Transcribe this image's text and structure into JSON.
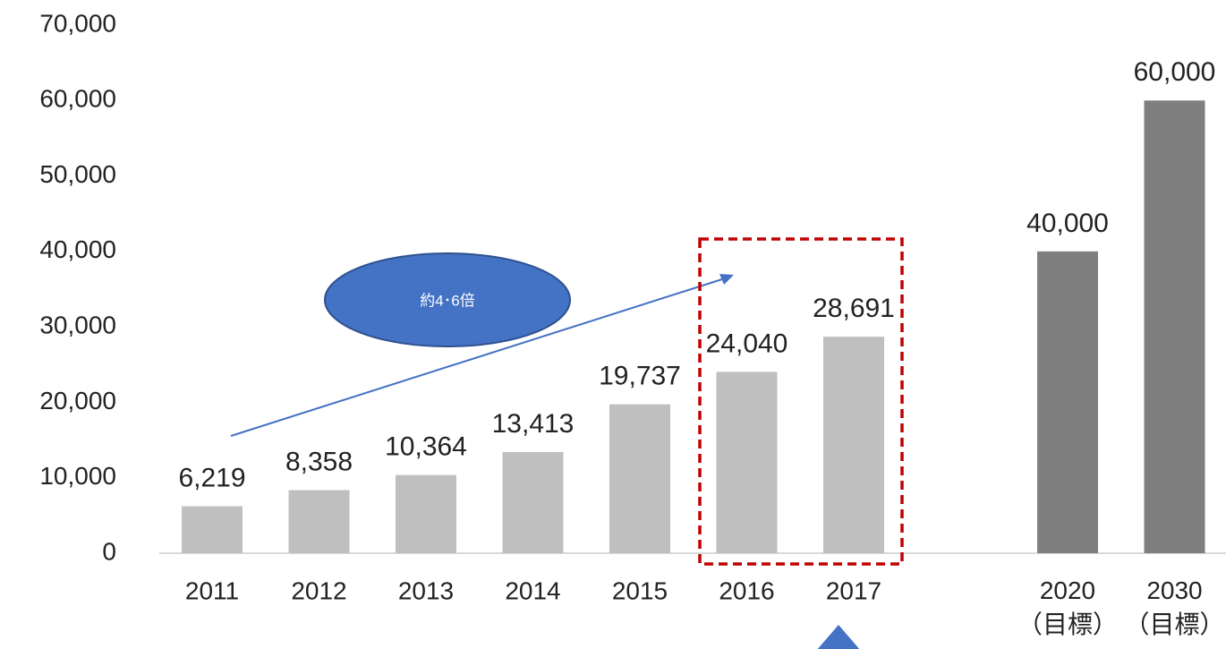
{
  "chart_data": {
    "type": "bar",
    "categories": [
      "2011",
      "2012",
      "2013",
      "2014",
      "2015",
      "2016",
      "2017",
      "2020\n（目標）",
      "2030\n（目標）"
    ],
    "values": [
      6219,
      8358,
      10364,
      13413,
      19737,
      24040,
      28691,
      40000,
      60000
    ],
    "value_labels": [
      "6,219",
      "8,358",
      "10,364",
      "13,413",
      "19,737",
      "24,040",
      "28,691",
      "40,000",
      "60,000"
    ],
    "colors": [
      "#bfbfbf",
      "#bfbfbf",
      "#bfbfbf",
      "#bfbfbf",
      "#bfbfbf",
      "#bfbfbf",
      "#bfbfbf",
      "#7f7f7f",
      "#7f7f7f"
    ],
    "ylim": [
      0,
      70000
    ],
    "yticks": [
      0,
      {
        "value": 10000,
        "label": "10,000"
      },
      {
        "value": 20000,
        "label": "20,000"
      },
      {
        "value": 30000,
        "label": "30,000"
      },
      {
        "value": 40000,
        "label": "40,000"
      },
      {
        "value": 50000,
        "label": "50,000"
      },
      {
        "value": 60000,
        "label": "60,000"
      },
      {
        "value": 70000,
        "label": "70,000"
      }
    ],
    "grid": false,
    "annotations": [
      "約4･6倍"
    ]
  }
}
